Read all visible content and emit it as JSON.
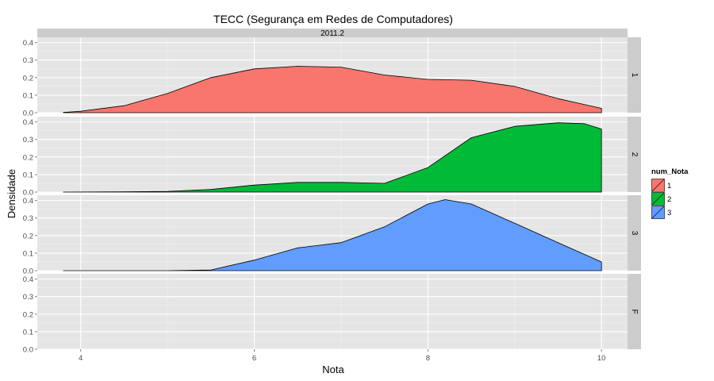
{
  "chart_data": {
    "type": "area",
    "title": "TECC (Segurança em Redes de Computadores)",
    "column_strip": "2011.2",
    "xlabel": "Nota",
    "ylabel": "Densidade",
    "xlim": [
      3.5,
      10.3
    ],
    "ylim": [
      0,
      0.43
    ],
    "x_ticks": [
      4,
      6,
      8,
      10
    ],
    "y_ticks": [
      0.0,
      0.1,
      0.2,
      0.3,
      0.4
    ],
    "x_tick_labels": [
      "4",
      "6",
      "8",
      "10"
    ],
    "y_tick_labels": [
      "0.0",
      "0.1",
      "0.2",
      "0.3",
      "0.4"
    ],
    "grid": true,
    "legend": {
      "title": "num_Nota",
      "position": "right"
    },
    "panels": [
      {
        "label": "1",
        "color": "#F8766D",
        "x": [
          3.8,
          4.0,
          4.5,
          5.0,
          5.5,
          6.0,
          6.5,
          7.0,
          7.5,
          8.0,
          8.5,
          9.0,
          9.5,
          10.0
        ],
        "y": [
          0.002,
          0.008,
          0.04,
          0.11,
          0.2,
          0.25,
          0.265,
          0.26,
          0.215,
          0.19,
          0.185,
          0.15,
          0.08,
          0.025
        ]
      },
      {
        "label": "2",
        "color": "#00BA38",
        "x": [
          3.8,
          4.5,
          5.0,
          5.5,
          6.0,
          6.5,
          7.0,
          7.5,
          8.0,
          8.5,
          9.0,
          9.5,
          9.8,
          10.0
        ],
        "y": [
          0.0,
          0.002,
          0.004,
          0.015,
          0.04,
          0.055,
          0.055,
          0.05,
          0.14,
          0.31,
          0.375,
          0.395,
          0.39,
          0.36
        ]
      },
      {
        "label": "3",
        "color": "#619CFF",
        "x": [
          3.8,
          4.5,
          5.0,
          5.5,
          6.0,
          6.5,
          7.0,
          7.5,
          8.0,
          8.2,
          8.5,
          9.0,
          9.5,
          10.0
        ],
        "y": [
          0.0,
          0.0,
          0.0,
          0.004,
          0.06,
          0.13,
          0.16,
          0.25,
          0.38,
          0.405,
          0.38,
          0.27,
          0.16,
          0.05
        ]
      },
      {
        "label": "F",
        "color": "#C77CFF",
        "x": [],
        "y": []
      }
    ]
  }
}
